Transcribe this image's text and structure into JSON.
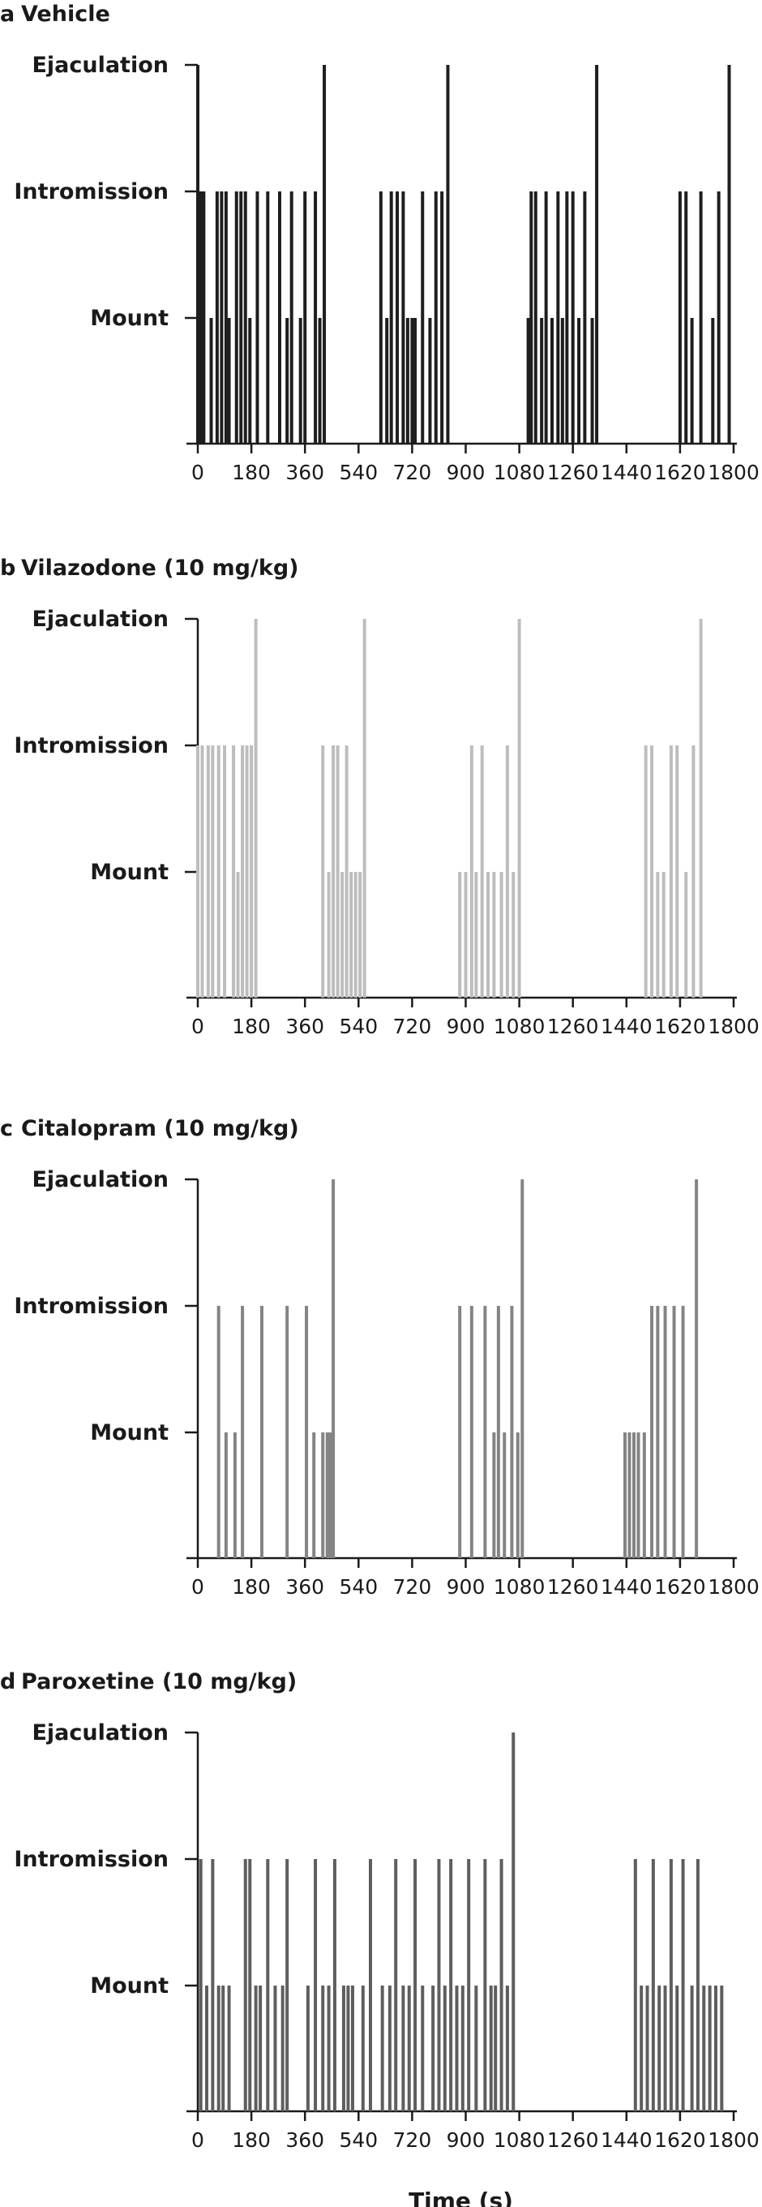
{
  "chart_data": [
    {
      "type": "bar",
      "panel": "a",
      "title": "Vehicle",
      "color": "#1e1e1e",
      "y_categories": [
        "Mount",
        "Intromission",
        "Ejaculation"
      ],
      "x_ticks": [
        "0",
        "180",
        "360",
        "540",
        "720",
        "900",
        "1080",
        "1260",
        "1440",
        "1620",
        "1800"
      ],
      "xlim": [
        0,
        1800
      ],
      "events": [
        {
          "t": 0,
          "type": "Ejaculation"
        },
        {
          "t": 10,
          "type": "Intromission"
        },
        {
          "t": 20,
          "type": "Intromission"
        },
        {
          "t": 45,
          "type": "Mount"
        },
        {
          "t": 65,
          "type": "Intromission"
        },
        {
          "t": 80,
          "type": "Intromission"
        },
        {
          "t": 95,
          "type": "Intromission"
        },
        {
          "t": 105,
          "type": "Mount"
        },
        {
          "t": 130,
          "type": "Intromission"
        },
        {
          "t": 145,
          "type": "Intromission"
        },
        {
          "t": 160,
          "type": "Intromission"
        },
        {
          "t": 175,
          "type": "Mount"
        },
        {
          "t": 200,
          "type": "Intromission"
        },
        {
          "t": 235,
          "type": "Intromission"
        },
        {
          "t": 275,
          "type": "Intromission"
        },
        {
          "t": 300,
          "type": "Mount"
        },
        {
          "t": 315,
          "type": "Intromission"
        },
        {
          "t": 345,
          "type": "Mount"
        },
        {
          "t": 360,
          "type": "Intromission"
        },
        {
          "t": 395,
          "type": "Intromission"
        },
        {
          "t": 410,
          "type": "Mount"
        },
        {
          "t": 425,
          "type": "Ejaculation"
        },
        {
          "t": 615,
          "type": "Intromission"
        },
        {
          "t": 635,
          "type": "Mount"
        },
        {
          "t": 650,
          "type": "Intromission"
        },
        {
          "t": 670,
          "type": "Intromission"
        },
        {
          "t": 690,
          "type": "Intromission"
        },
        {
          "t": 705,
          "type": "Mount"
        },
        {
          "t": 720,
          "type": "Mount"
        },
        {
          "t": 730,
          "type": "Mount"
        },
        {
          "t": 755,
          "type": "Intromission"
        },
        {
          "t": 780,
          "type": "Mount"
        },
        {
          "t": 800,
          "type": "Intromission"
        },
        {
          "t": 820,
          "type": "Intromission"
        },
        {
          "t": 840,
          "type": "Ejaculation"
        },
        {
          "t": 1110,
          "type": "Mount"
        },
        {
          "t": 1120,
          "type": "Intromission"
        },
        {
          "t": 1135,
          "type": "Intromission"
        },
        {
          "t": 1155,
          "type": "Mount"
        },
        {
          "t": 1170,
          "type": "Intromission"
        },
        {
          "t": 1190,
          "type": "Mount"
        },
        {
          "t": 1210,
          "type": "Intromission"
        },
        {
          "t": 1225,
          "type": "Mount"
        },
        {
          "t": 1240,
          "type": "Intromission"
        },
        {
          "t": 1260,
          "type": "Intromission"
        },
        {
          "t": 1280,
          "type": "Mount"
        },
        {
          "t": 1300,
          "type": "Intromission"
        },
        {
          "t": 1325,
          "type": "Mount"
        },
        {
          "t": 1340,
          "type": "Ejaculation"
        },
        {
          "t": 1620,
          "type": "Intromission"
        },
        {
          "t": 1640,
          "type": "Intromission"
        },
        {
          "t": 1660,
          "type": "Mount"
        },
        {
          "t": 1690,
          "type": "Intromission"
        },
        {
          "t": 1730,
          "type": "Mount"
        },
        {
          "t": 1750,
          "type": "Intromission"
        },
        {
          "t": 1785,
          "type": "Ejaculation"
        }
      ]
    },
    {
      "type": "bar",
      "panel": "b",
      "title": "Vilazodone (10 mg/kg)",
      "color": "#bdbdbd",
      "y_categories": [
        "Mount",
        "Intromission",
        "Ejaculation"
      ],
      "x_ticks": [
        "0",
        "180",
        "360",
        "540",
        "720",
        "900",
        "1080",
        "1260",
        "1440",
        "1620",
        "1800"
      ],
      "xlim": [
        0,
        1800
      ],
      "events": [
        {
          "t": 0,
          "type": "Intromission"
        },
        {
          "t": 15,
          "type": "Intromission"
        },
        {
          "t": 35,
          "type": "Intromission"
        },
        {
          "t": 50,
          "type": "Intromission"
        },
        {
          "t": 70,
          "type": "Intromission"
        },
        {
          "t": 90,
          "type": "Intromission"
        },
        {
          "t": 120,
          "type": "Intromission"
        },
        {
          "t": 135,
          "type": "Mount"
        },
        {
          "t": 150,
          "type": "Intromission"
        },
        {
          "t": 165,
          "type": "Intromission"
        },
        {
          "t": 180,
          "type": "Intromission"
        },
        {
          "t": 195,
          "type": "Ejaculation"
        },
        {
          "t": 420,
          "type": "Intromission"
        },
        {
          "t": 440,
          "type": "Mount"
        },
        {
          "t": 455,
          "type": "Intromission"
        },
        {
          "t": 470,
          "type": "Intromission"
        },
        {
          "t": 485,
          "type": "Mount"
        },
        {
          "t": 500,
          "type": "Intromission"
        },
        {
          "t": 515,
          "type": "Mount"
        },
        {
          "t": 530,
          "type": "Mount"
        },
        {
          "t": 545,
          "type": "Mount"
        },
        {
          "t": 560,
          "type": "Ejaculation"
        },
        {
          "t": 880,
          "type": "Mount"
        },
        {
          "t": 900,
          "type": "Mount"
        },
        {
          "t": 920,
          "type": "Intromission"
        },
        {
          "t": 935,
          "type": "Mount"
        },
        {
          "t": 955,
          "type": "Intromission"
        },
        {
          "t": 975,
          "type": "Mount"
        },
        {
          "t": 995,
          "type": "Mount"
        },
        {
          "t": 1020,
          "type": "Mount"
        },
        {
          "t": 1040,
          "type": "Intromission"
        },
        {
          "t": 1060,
          "type": "Mount"
        },
        {
          "t": 1080,
          "type": "Ejaculation"
        },
        {
          "t": 1505,
          "type": "Intromission"
        },
        {
          "t": 1525,
          "type": "Intromission"
        },
        {
          "t": 1545,
          "type": "Mount"
        },
        {
          "t": 1565,
          "type": "Mount"
        },
        {
          "t": 1590,
          "type": "Intromission"
        },
        {
          "t": 1610,
          "type": "Intromission"
        },
        {
          "t": 1640,
          "type": "Mount"
        },
        {
          "t": 1665,
          "type": "Intromission"
        },
        {
          "t": 1690,
          "type": "Ejaculation"
        }
      ]
    },
    {
      "type": "bar",
      "panel": "c",
      "title": "Citalopram (10 mg/kg)",
      "color": "#848484",
      "y_categories": [
        "Mount",
        "Intromission",
        "Ejaculation"
      ],
      "x_ticks": [
        "0",
        "180",
        "360",
        "540",
        "720",
        "900",
        "1080",
        "1260",
        "1440",
        "1620",
        "1800"
      ],
      "xlim": [
        0,
        1800
      ],
      "events": [
        {
          "t": 70,
          "type": "Intromission"
        },
        {
          "t": 95,
          "type": "Mount"
        },
        {
          "t": 125,
          "type": "Mount"
        },
        {
          "t": 150,
          "type": "Intromission"
        },
        {
          "t": 215,
          "type": "Intromission"
        },
        {
          "t": 300,
          "type": "Intromission"
        },
        {
          "t": 365,
          "type": "Intromission"
        },
        {
          "t": 390,
          "type": "Mount"
        },
        {
          "t": 420,
          "type": "Mount"
        },
        {
          "t": 435,
          "type": "Mount"
        },
        {
          "t": 445,
          "type": "Mount"
        },
        {
          "t": 455,
          "type": "Ejaculation"
        },
        {
          "t": 880,
          "type": "Intromission"
        },
        {
          "t": 920,
          "type": "Intromission"
        },
        {
          "t": 965,
          "type": "Intromission"
        },
        {
          "t": 995,
          "type": "Mount"
        },
        {
          "t": 1010,
          "type": "Intromission"
        },
        {
          "t": 1030,
          "type": "Mount"
        },
        {
          "t": 1055,
          "type": "Intromission"
        },
        {
          "t": 1075,
          "type": "Mount"
        },
        {
          "t": 1090,
          "type": "Ejaculation"
        },
        {
          "t": 1435,
          "type": "Mount"
        },
        {
          "t": 1450,
          "type": "Mount"
        },
        {
          "t": 1465,
          "type": "Mount"
        },
        {
          "t": 1480,
          "type": "Mount"
        },
        {
          "t": 1500,
          "type": "Mount"
        },
        {
          "t": 1525,
          "type": "Intromission"
        },
        {
          "t": 1545,
          "type": "Intromission"
        },
        {
          "t": 1570,
          "type": "Intromission"
        },
        {
          "t": 1600,
          "type": "Intromission"
        },
        {
          "t": 1630,
          "type": "Intromission"
        },
        {
          "t": 1675,
          "type": "Ejaculation"
        }
      ]
    },
    {
      "type": "bar",
      "panel": "d",
      "title": "Paroxetine (10 mg/kg)",
      "color": "#5e5e5e",
      "y_categories": [
        "Mount",
        "Intromission",
        "Ejaculation"
      ],
      "x_ticks": [
        "0",
        "180",
        "360",
        "540",
        "720",
        "900",
        "1080",
        "1260",
        "1440",
        "1620",
        "1800"
      ],
      "xlim": [
        0,
        1800
      ],
      "xlabel": "Time (s)",
      "events": [
        {
          "t": 10,
          "type": "Intromission"
        },
        {
          "t": 30,
          "type": "Mount"
        },
        {
          "t": 50,
          "type": "Intromission"
        },
        {
          "t": 70,
          "type": "Mount"
        },
        {
          "t": 85,
          "type": "Mount"
        },
        {
          "t": 105,
          "type": "Mount"
        },
        {
          "t": 160,
          "type": "Intromission"
        },
        {
          "t": 175,
          "type": "Intromission"
        },
        {
          "t": 195,
          "type": "Mount"
        },
        {
          "t": 210,
          "type": "Mount"
        },
        {
          "t": 235,
          "type": "Intromission"
        },
        {
          "t": 260,
          "type": "Mount"
        },
        {
          "t": 285,
          "type": "Mount"
        },
        {
          "t": 300,
          "type": "Intromission"
        },
        {
          "t": 370,
          "type": "Mount"
        },
        {
          "t": 395,
          "type": "Intromission"
        },
        {
          "t": 420,
          "type": "Mount"
        },
        {
          "t": 440,
          "type": "Mount"
        },
        {
          "t": 460,
          "type": "Intromission"
        },
        {
          "t": 490,
          "type": "Mount"
        },
        {
          "t": 505,
          "type": "Mount"
        },
        {
          "t": 520,
          "type": "Mount"
        },
        {
          "t": 555,
          "type": "Mount"
        },
        {
          "t": 580,
          "type": "Intromission"
        },
        {
          "t": 620,
          "type": "Mount"
        },
        {
          "t": 645,
          "type": "Mount"
        },
        {
          "t": 665,
          "type": "Intromission"
        },
        {
          "t": 690,
          "type": "Mount"
        },
        {
          "t": 710,
          "type": "Mount"
        },
        {
          "t": 730,
          "type": "Intromission"
        },
        {
          "t": 755,
          "type": "Mount"
        },
        {
          "t": 790,
          "type": "Mount"
        },
        {
          "t": 810,
          "type": "Intromission"
        },
        {
          "t": 830,
          "type": "Mount"
        },
        {
          "t": 850,
          "type": "Intromission"
        },
        {
          "t": 870,
          "type": "Mount"
        },
        {
          "t": 890,
          "type": "Mount"
        },
        {
          "t": 910,
          "type": "Intromission"
        },
        {
          "t": 935,
          "type": "Mount"
        },
        {
          "t": 965,
          "type": "Intromission"
        },
        {
          "t": 985,
          "type": "Mount"
        },
        {
          "t": 1000,
          "type": "Mount"
        },
        {
          "t": 1020,
          "type": "Intromission"
        },
        {
          "t": 1040,
          "type": "Mount"
        },
        {
          "t": 1060,
          "type": "Ejaculation"
        },
        {
          "t": 1470,
          "type": "Intromission"
        },
        {
          "t": 1490,
          "type": "Mount"
        },
        {
          "t": 1510,
          "type": "Mount"
        },
        {
          "t": 1530,
          "type": "Intromission"
        },
        {
          "t": 1550,
          "type": "Mount"
        },
        {
          "t": 1570,
          "type": "Mount"
        },
        {
          "t": 1590,
          "type": "Intromission"
        },
        {
          "t": 1610,
          "type": "Mount"
        },
        {
          "t": 1630,
          "type": "Intromission"
        },
        {
          "t": 1660,
          "type": "Mount"
        },
        {
          "t": 1680,
          "type": "Intromission"
        },
        {
          "t": 1700,
          "type": "Mount"
        },
        {
          "t": 1720,
          "type": "Mount"
        },
        {
          "t": 1740,
          "type": "Mount"
        },
        {
          "t": 1760,
          "type": "Mount"
        }
      ]
    }
  ]
}
